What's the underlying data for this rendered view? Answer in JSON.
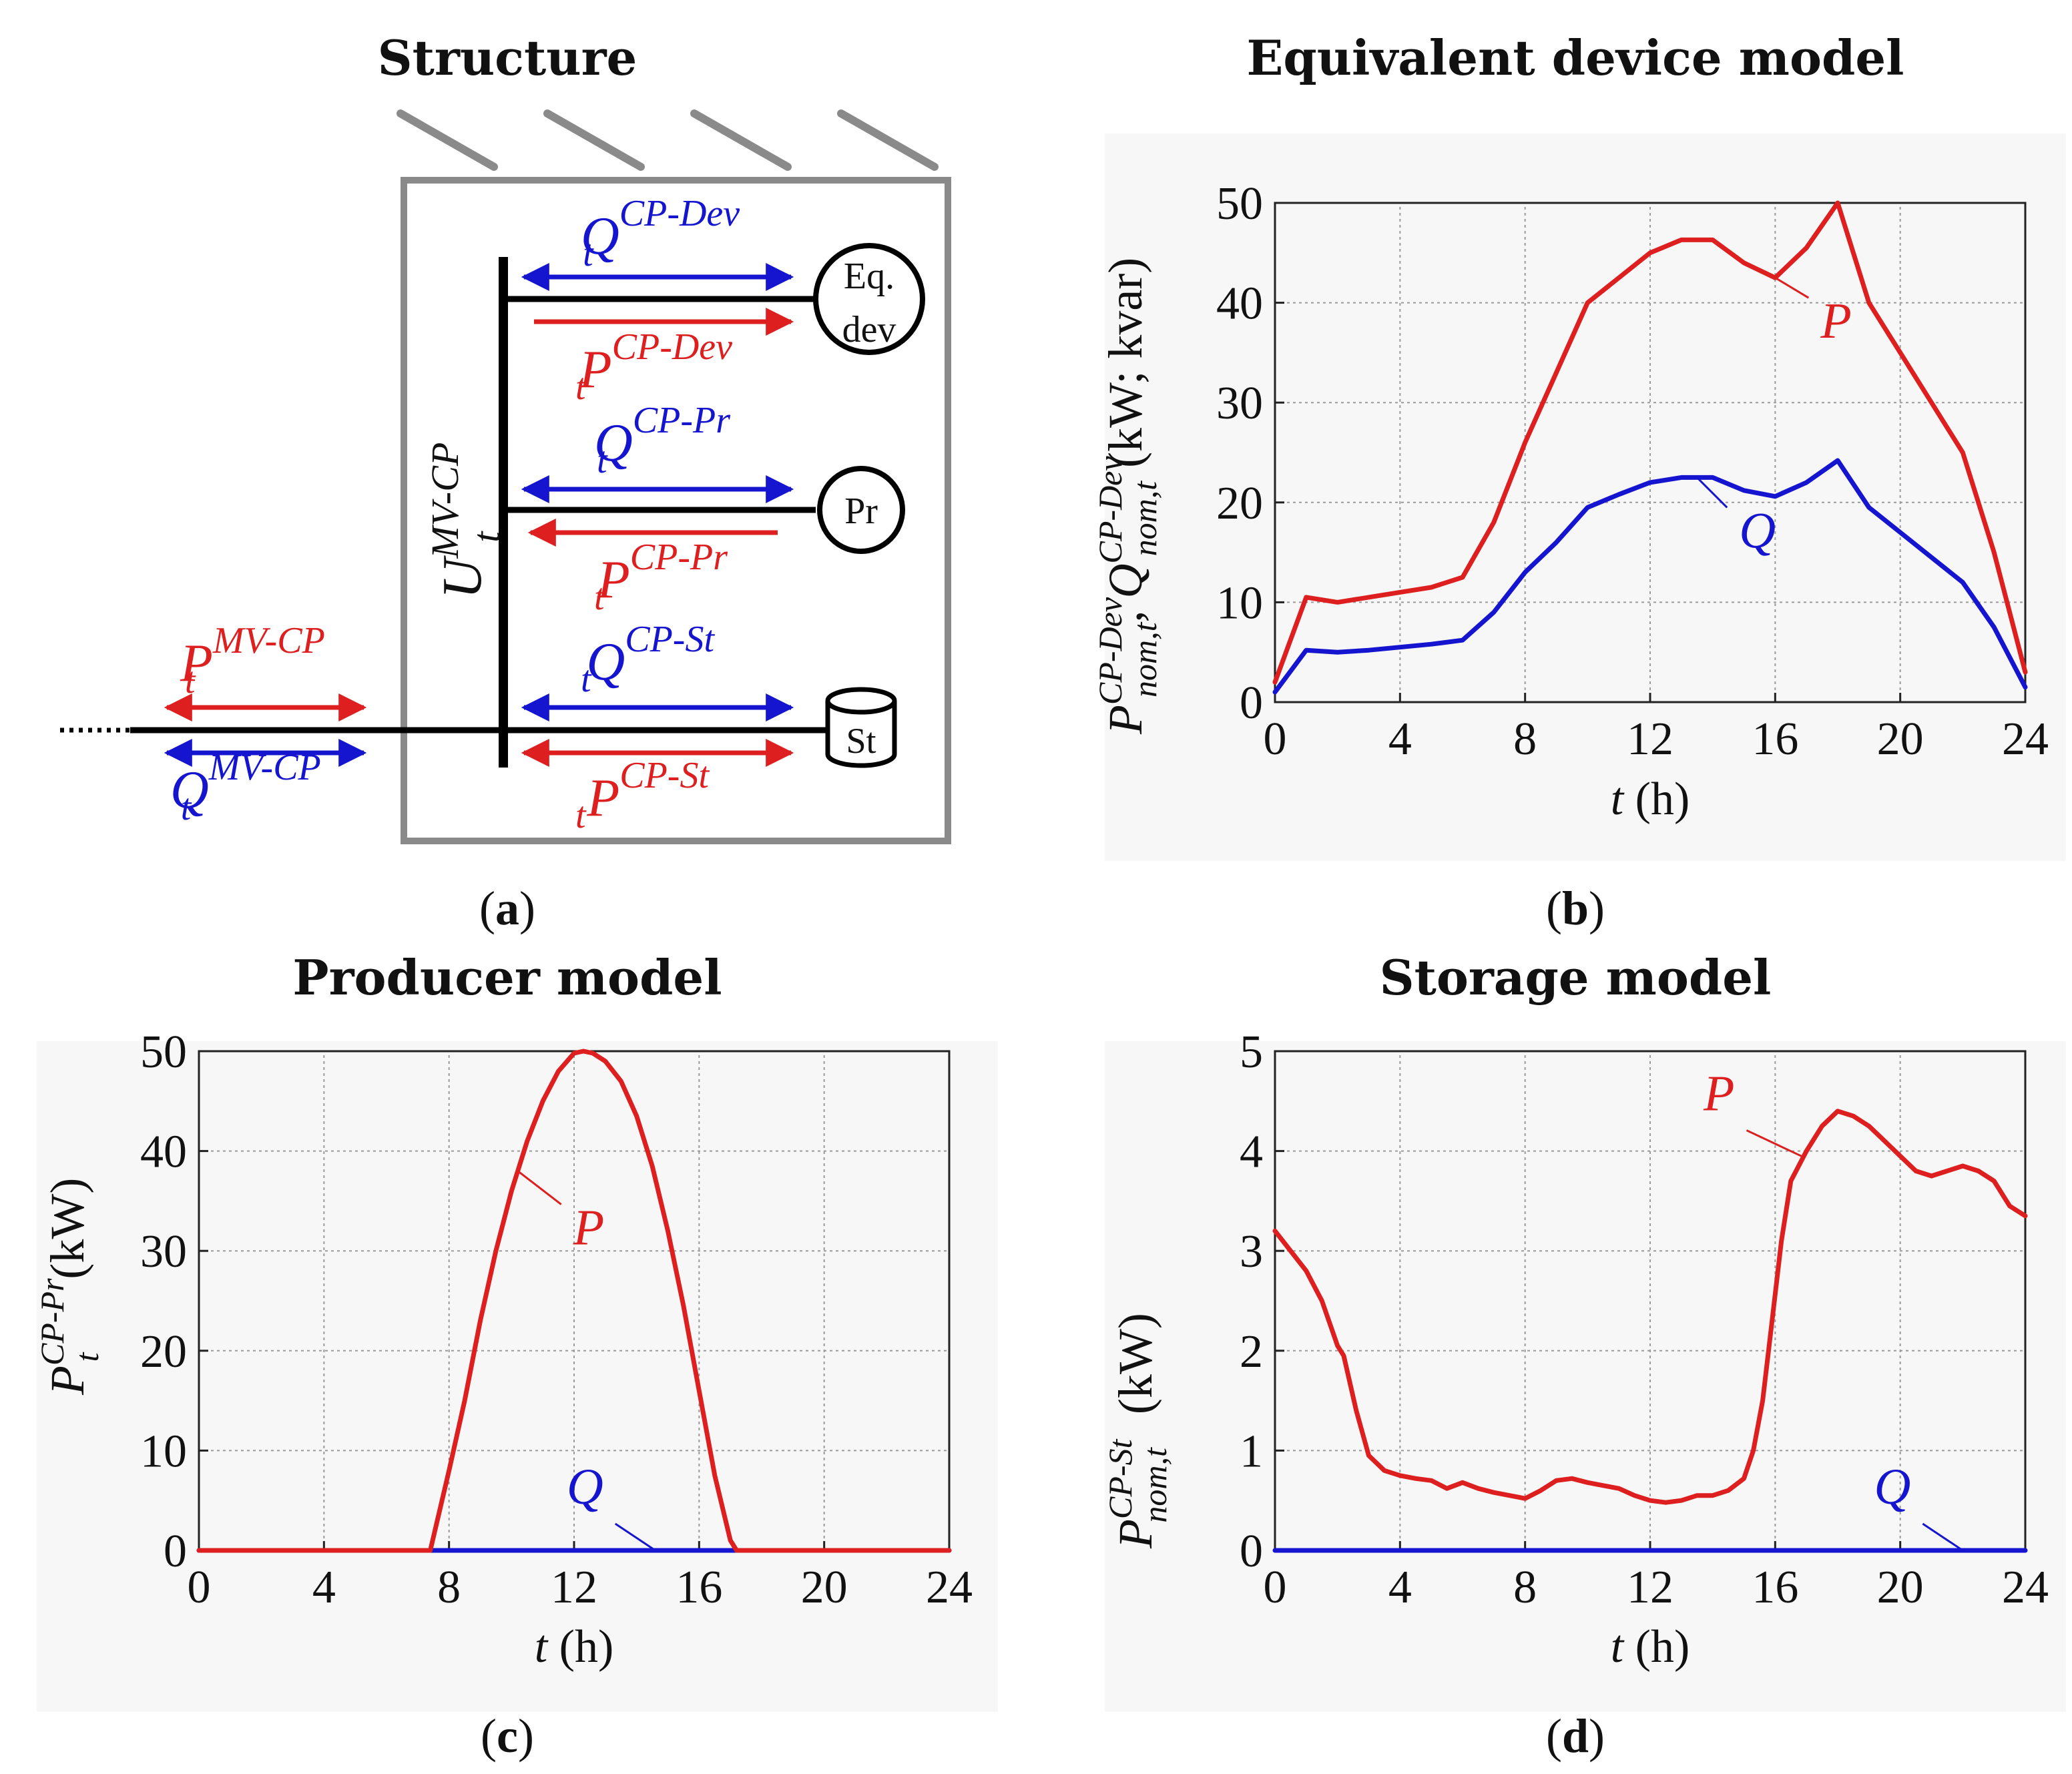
{
  "panel_a": {
    "title": "Structure",
    "caption": "a",
    "bus_voltage": {
      "base": "U",
      "sup": "MV-CP",
      "sub": "t"
    },
    "connections": [
      {
        "id": "eqdev",
        "q": {
          "base": "Q",
          "sup": "CP-Dev",
          "sub": "t"
        },
        "p": {
          "base": "P",
          "sup": "CP-Dev",
          "sub": "t"
        },
        "device_line1": "Eq.",
        "device_line2": "dev"
      },
      {
        "id": "pr",
        "q": {
          "base": "Q",
          "sup": "CP-Pr",
          "sub": "t"
        },
        "p": {
          "base": "P",
          "sup": "CP-Pr",
          "sub": "t"
        },
        "device_line1": "Pr"
      },
      {
        "id": "st",
        "q": {
          "base": "Q",
          "sup": "CP-St",
          "sub": "t"
        },
        "p": {
          "base": "P",
          "sup": "CP-St",
          "sub": "t"
        },
        "device_line1": "St"
      }
    ],
    "external": {
      "p": {
        "base": "P",
        "sup": "MV-CP",
        "sub": "t"
      },
      "q": {
        "base": "Q",
        "sup": "MV-CP",
        "sub": "t"
      }
    },
    "colors": {
      "p": "#dd1f1f",
      "q": "#1515d0",
      "box": "#8a8a8a"
    }
  },
  "chart_data": [
    {
      "id": "b",
      "type": "line",
      "title": "Equivalent device model",
      "caption": "b",
      "xlabel": {
        "var": "t",
        "unit": "(h)"
      },
      "ylabel": {
        "p_base": "P",
        "p_sup": "CP-Dev",
        "p_sub": "nom,t",
        "q_base": "Q",
        "q_sup": "CP-Dev",
        "q_sub": "nom,t",
        "unit": "(kW; kvar)"
      },
      "xlim": [
        0,
        24
      ],
      "ylim": [
        0,
        50
      ],
      "xticks": [
        0,
        4,
        8,
        12,
        16,
        20,
        24
      ],
      "yticks": [
        0,
        10,
        20,
        30,
        40,
        50
      ],
      "series": [
        {
          "name": "P",
          "color": "#dd1f1f",
          "x": [
            0,
            1,
            2,
            3,
            4,
            5,
            6,
            7,
            8,
            9,
            10,
            11,
            12,
            13,
            14,
            15,
            16,
            17,
            18,
            19,
            20,
            21,
            22,
            23,
            24
          ],
          "values": [
            2,
            10.5,
            10,
            10.5,
            11,
            11.5,
            12.5,
            18,
            26,
            33,
            40,
            42.5,
            45,
            46.3,
            46.3,
            44,
            42.5,
            45.5,
            50,
            40,
            35,
            30,
            25,
            15,
            3
          ]
        },
        {
          "name": "Q",
          "color": "#1515d0",
          "x": [
            0,
            1,
            2,
            3,
            4,
            5,
            6,
            7,
            8,
            9,
            10,
            11,
            12,
            13,
            14,
            15,
            16,
            17,
            18,
            19,
            20,
            21,
            22,
            23,
            24
          ],
          "values": [
            1,
            5.2,
            5,
            5.2,
            5.5,
            5.8,
            6.2,
            9,
            13,
            16,
            19.5,
            20.8,
            22,
            22.5,
            22.5,
            21.2,
            20.6,
            22,
            24.2,
            19.5,
            17,
            14.5,
            12,
            7.5,
            1.5
          ]
        }
      ],
      "annotations": [
        {
          "text": "P",
          "series": "P"
        },
        {
          "text": "Q",
          "series": "Q"
        }
      ]
    },
    {
      "id": "c",
      "type": "line",
      "title": "Producer model",
      "caption": "c",
      "xlabel": {
        "var": "t",
        "unit": "(h)"
      },
      "ylabel": {
        "p_base": "P",
        "p_sup": "CP-Pr",
        "p_sub": "t",
        "unit": "(kW)"
      },
      "xlim": [
        0,
        24
      ],
      "ylim": [
        0,
        50
      ],
      "xticks": [
        0,
        4,
        8,
        12,
        16,
        20,
        24
      ],
      "yticks": [
        0,
        10,
        20,
        30,
        40,
        50
      ],
      "series": [
        {
          "name": "P",
          "color": "#dd1f1f",
          "x": [
            0,
            7.4,
            8,
            8.5,
            9,
            9.5,
            10,
            10.5,
            11,
            11.5,
            12,
            12.3,
            12.6,
            13,
            13.5,
            14,
            14.5,
            15,
            15.5,
            16,
            16.5,
            17,
            17.2,
            24
          ],
          "values": [
            0,
            0,
            8,
            15,
            23,
            30,
            36,
            41,
            45,
            48,
            49.8,
            50,
            49.8,
            49,
            47,
            43.5,
            38.5,
            32,
            24.5,
            16,
            7.5,
            1,
            0,
            0
          ]
        },
        {
          "name": "Q",
          "color": "#1515d0",
          "x": [
            0,
            24
          ],
          "values": [
            0,
            0
          ]
        }
      ],
      "annotations": [
        {
          "text": "P",
          "series": "P"
        },
        {
          "text": "Q",
          "series": "Q"
        }
      ]
    },
    {
      "id": "d",
      "type": "line",
      "title": "Storage model",
      "caption": "d",
      "xlabel": {
        "var": "t",
        "unit": "(h)"
      },
      "ylabel": {
        "p_base": "P",
        "p_sup": "CP-St",
        "p_sub": "nom,t",
        "unit": "(kW)"
      },
      "xlim": [
        0,
        24
      ],
      "ylim": [
        0,
        5
      ],
      "xticks": [
        0,
        4,
        8,
        12,
        16,
        20,
        24
      ],
      "yticks": [
        0,
        1,
        2,
        3,
        4,
        5
      ],
      "series": [
        {
          "name": "P",
          "color": "#dd1f1f",
          "x": [
            0,
            0.5,
            1,
            1.5,
            2,
            2.2,
            2.6,
            3,
            3.5,
            4,
            4.5,
            5,
            5.5,
            6,
            6.5,
            7,
            7.5,
            8,
            8.5,
            9,
            9.5,
            10,
            10.5,
            11,
            11.5,
            12,
            12.5,
            13,
            13.5,
            14,
            14.5,
            15,
            15.3,
            15.6,
            15.9,
            16.2,
            16.5,
            17,
            17.5,
            18,
            18.5,
            19,
            19.5,
            20,
            20.5,
            21,
            21.5,
            22,
            22.5,
            23,
            23.5,
            24
          ],
          "values": [
            3.2,
            3.0,
            2.8,
            2.5,
            2.05,
            1.95,
            1.4,
            0.95,
            0.8,
            0.75,
            0.72,
            0.7,
            0.62,
            0.68,
            0.62,
            0.58,
            0.55,
            0.52,
            0.6,
            0.7,
            0.72,
            0.68,
            0.65,
            0.62,
            0.55,
            0.5,
            0.48,
            0.5,
            0.55,
            0.55,
            0.6,
            0.72,
            1.0,
            1.5,
            2.3,
            3.1,
            3.7,
            4.0,
            4.25,
            4.4,
            4.35,
            4.25,
            4.1,
            3.95,
            3.8,
            3.75,
            3.8,
            3.85,
            3.8,
            3.7,
            3.45,
            3.35
          ]
        },
        {
          "name": "Q",
          "color": "#1515d0",
          "x": [
            0,
            24
          ],
          "values": [
            0,
            0
          ]
        }
      ],
      "annotations": [
        {
          "text": "P",
          "series": "P"
        },
        {
          "text": "Q",
          "series": "Q"
        }
      ]
    }
  ]
}
